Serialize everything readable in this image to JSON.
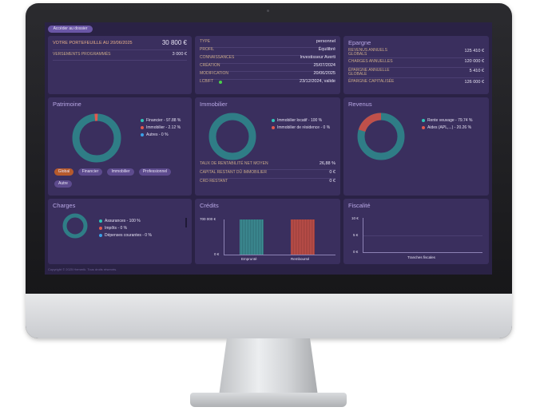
{
  "button_dossier": "Accéder au dossier",
  "portefeuille": {
    "label": "VOTRE PORTEFEUILLE AU 20/06/2025",
    "value": "30 800 €",
    "versements_label": "VERSEMENTS PROGRAMMÉS",
    "versements_value": "3 000 €"
  },
  "profile": [
    {
      "k": "TYPE",
      "v": "personnel"
    },
    {
      "k": "PROFIL",
      "v": "Équilibré"
    },
    {
      "k": "CONNAISSANCES",
      "v": "Investisseur Averti"
    },
    {
      "k": "CRÉATION",
      "v": "25/07/2024"
    },
    {
      "k": "MODIFICATION",
      "v": "20/06/2025"
    },
    {
      "k": "LCB/FT",
      "v": "23/12/2024, valide"
    }
  ],
  "epargne": {
    "title": "Epargne",
    "rows": [
      {
        "k": "REVENUS ANNUELS GLOBALS",
        "v": "125 410 €"
      },
      {
        "k": "CHARGES ANNUELLES",
        "v": "120 000 €"
      },
      {
        "k": "ÉPARGNE ANNUELLE GLOBALE",
        "v": "5 410 €"
      },
      {
        "k": "ÉPARGNE CAPITALISÉE",
        "v": "126 000 €"
      }
    ]
  },
  "patrimoine": {
    "title": "Patrimoine",
    "legend": [
      {
        "label": "Financier - 97.88 %",
        "color": "#2ec4b6",
        "pct": 97.88
      },
      {
        "label": "Immobilier - 2.12 %",
        "color": "#e05a4e",
        "pct": 2.12
      },
      {
        "label": "Autres - 0 %",
        "color": "#3aa0e8",
        "pct": 0
      }
    ],
    "filters": [
      "Global",
      "Financier",
      "Immobilier",
      "Professionnel",
      "Autre"
    ]
  },
  "immobilier": {
    "title": "Immobilier",
    "legend": [
      {
        "label": "Immobilier locatif - 100 %",
        "color": "#2ec4b6",
        "pct": 100
      },
      {
        "label": "Immobilier de résidence - 0 %",
        "color": "#e05a4e",
        "pct": 0
      }
    ],
    "rows": [
      {
        "k": "TAUX DE RENTABILITÉ NET MOYEN",
        "v": "26,88 %"
      },
      {
        "k": "CAPITAL RESTANT DÛ IMMOBILIER",
        "v": "0 €"
      },
      {
        "k": "CRD RESTANT",
        "v": "0 €"
      }
    ]
  },
  "revenus": {
    "title": "Revenus",
    "legend": [
      {
        "label": "Rente veuvage - 79.74 %",
        "color": "#2ec4b6",
        "pct": 79.74
      },
      {
        "label": "Aides (APL,...) - 20.26 %",
        "color": "#e05a4e",
        "pct": 20.26
      }
    ]
  },
  "charges": {
    "title": "Charges",
    "legend": [
      {
        "label": "Assurances - 100 %",
        "color": "#2ec4b6",
        "pct": 100
      },
      {
        "label": "Impôts - 0 %",
        "color": "#e05a4e",
        "pct": 0
      },
      {
        "label": "Dépenses courantes - 0 %",
        "color": "#3aa0e8",
        "pct": 0
      }
    ]
  },
  "credits": {
    "title": "Crédits",
    "ytop": "700 000 €",
    "ybottom": "0 €",
    "chart_data": {
      "type": "bar",
      "categories": [
        "Emprunté",
        "Remboursé"
      ],
      "values": [
        700000,
        700000
      ],
      "ylim": [
        0,
        700000
      ]
    }
  },
  "fiscalite": {
    "title": "Fiscalité",
    "ticks": [
      "10 €",
      "5 €",
      "0 €"
    ],
    "xlabel": "Tranches fiscales"
  },
  "footer": "Copyright © 2025 Hemerik. Tous droits réservés."
}
